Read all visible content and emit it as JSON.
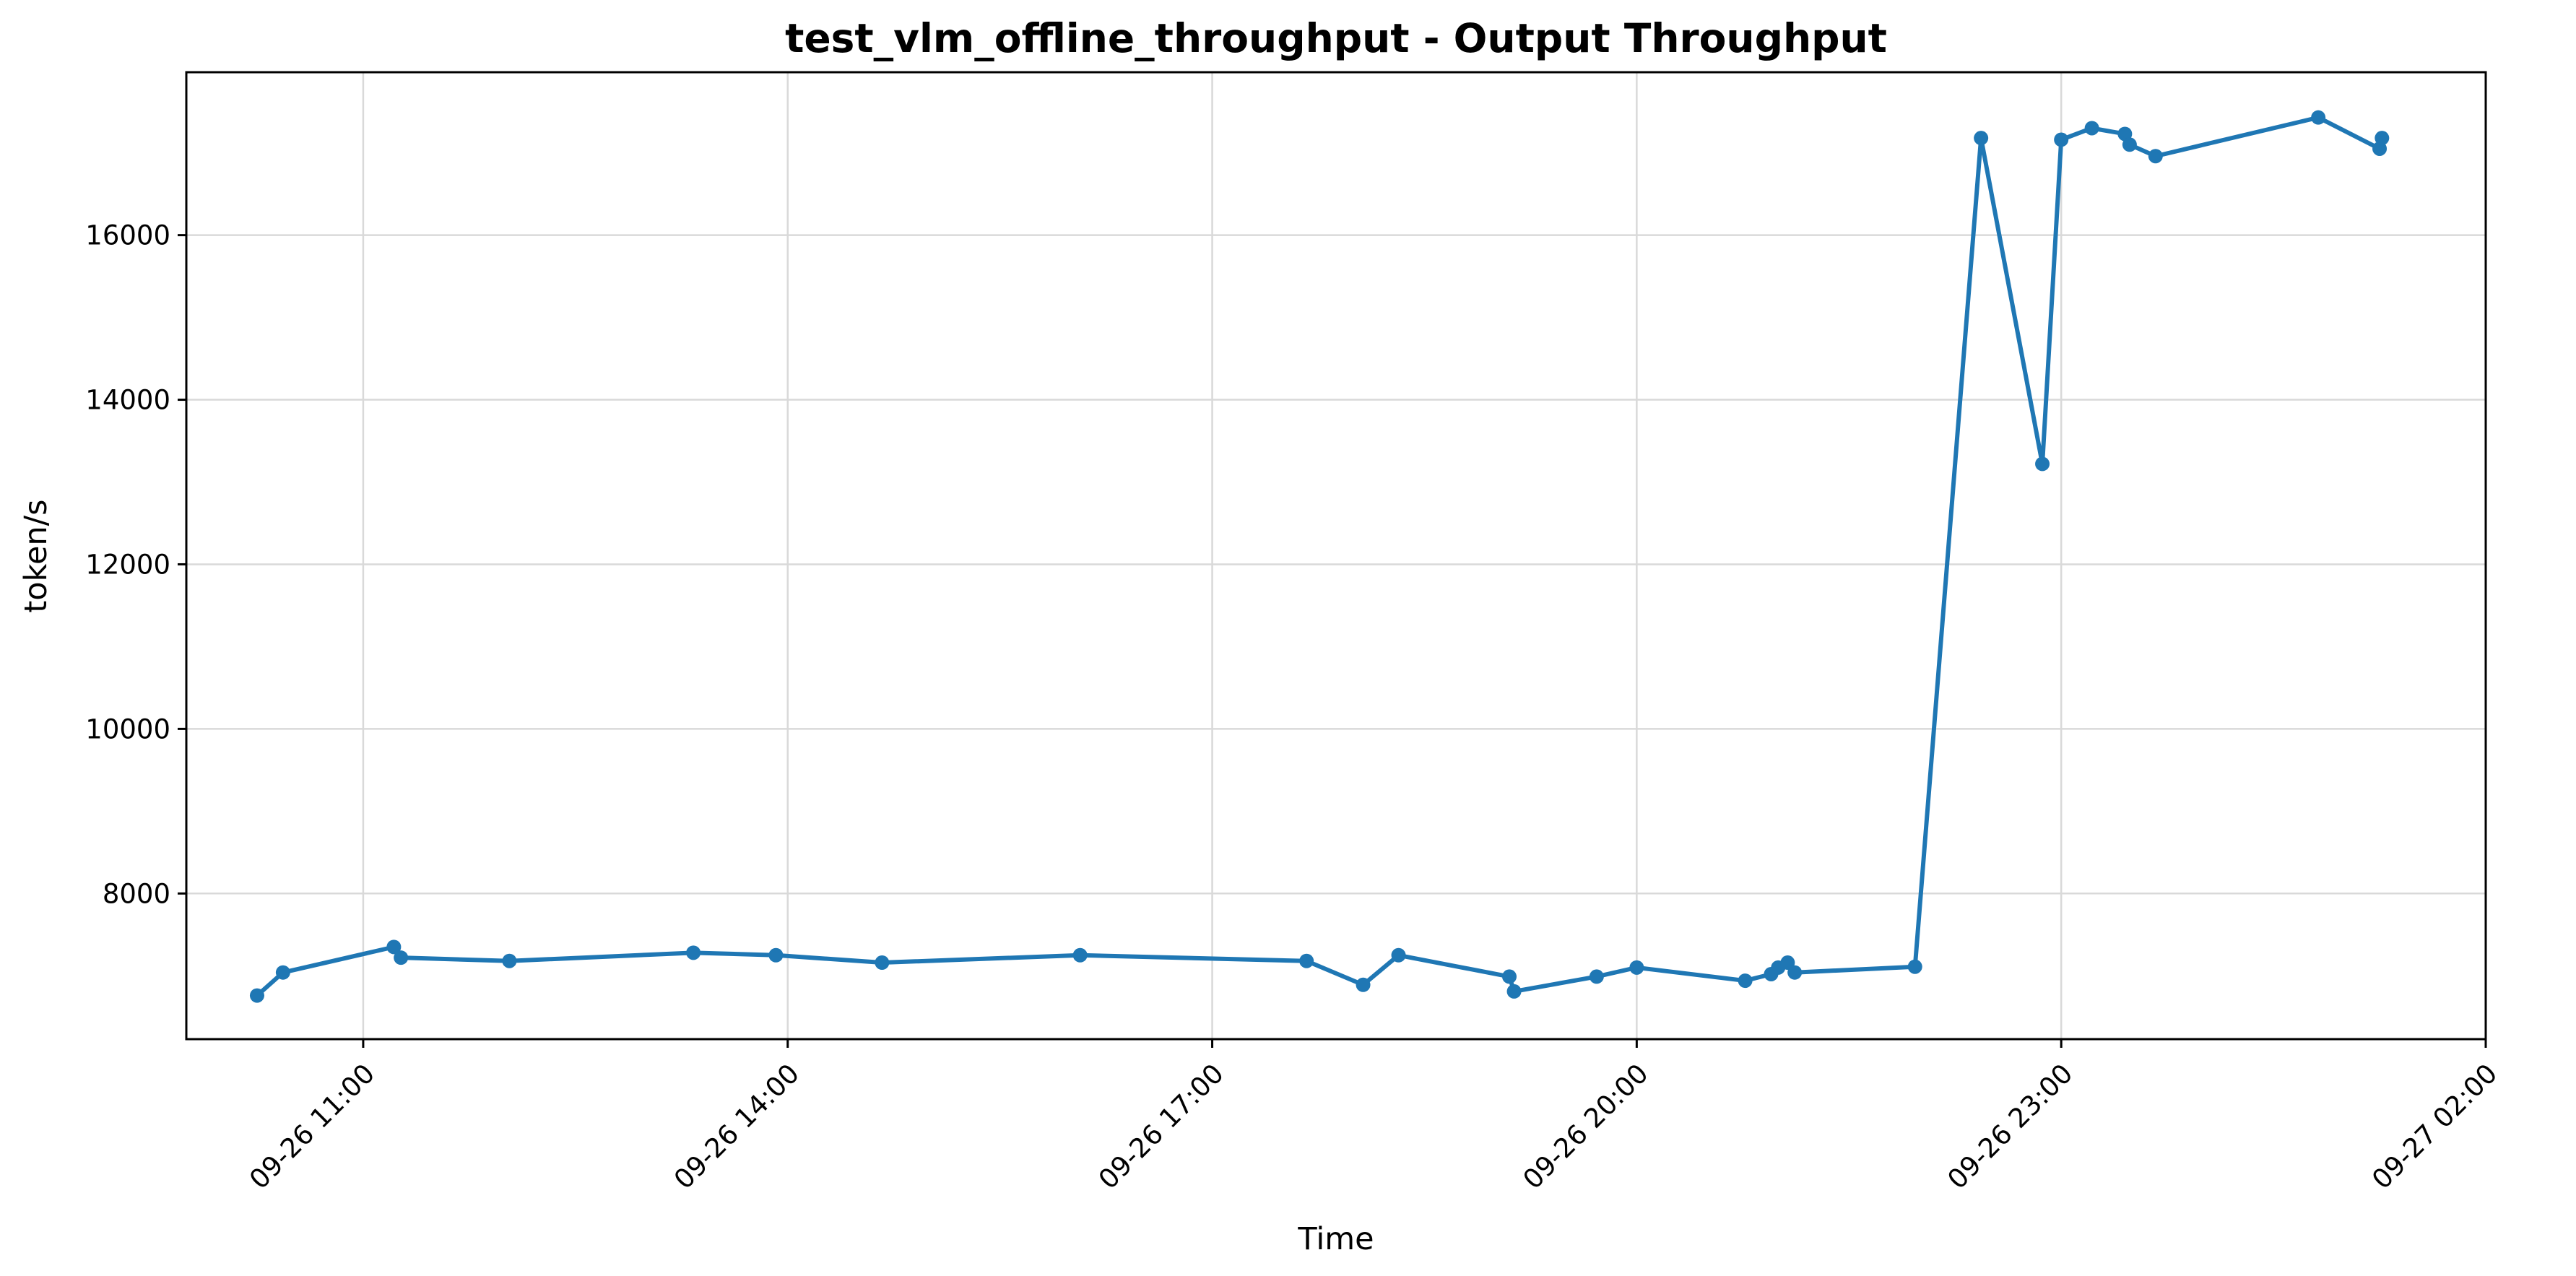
{
  "chart_data": {
    "type": "line",
    "title": "test_vlm_offline_throughput - Output Throughput",
    "xlabel": "Time",
    "ylabel": "token/s",
    "grid": true,
    "legend": "none",
    "line_color": "#1f77b4",
    "x_ticks": [
      "09-26 11:00",
      "09-26 14:00",
      "09-26 17:00",
      "09-26 20:00",
      "09-26 23:00",
      "09-27 02:00"
    ],
    "y_ticks": [
      8000,
      10000,
      12000,
      14000,
      16000
    ],
    "xlim": [
      "2025-09-26T09:45",
      "2025-09-27T02:00"
    ],
    "ylim": [
      6230,
      17980
    ],
    "series": [
      {
        "x": [
          "2025-09-26T10:15",
          "2025-09-26T10:26",
          "2025-09-26T11:13",
          "2025-09-26T11:16",
          "2025-09-26T12:02",
          "2025-09-26T13:20",
          "2025-09-26T13:55",
          "2025-09-26T14:40",
          "2025-09-26T16:04",
          "2025-09-26T17:40",
          "2025-09-26T18:04",
          "2025-09-26T18:19",
          "2025-09-26T19:06",
          "2025-09-26T19:08",
          "2025-09-26T19:43",
          "2025-09-26T20:00",
          "2025-09-26T20:46",
          "2025-09-26T20:57",
          "2025-09-26T21:00",
          "2025-09-26T21:04",
          "2025-09-26T21:07",
          "2025-09-26T21:58",
          "2025-09-26T22:26",
          "2025-09-26T22:52",
          "2025-09-26T23:00",
          "2025-09-26T23:13",
          "2025-09-26T23:27",
          "2025-09-26T23:29",
          "2025-09-26T23:40",
          "2025-09-27T00:49",
          "2025-09-27T01:15",
          "2025-09-27T01:16"
        ],
        "y": [
          6760,
          7040,
          7350,
          7220,
          7180,
          7280,
          7250,
          7160,
          7250,
          7180,
          6890,
          7250,
          6990,
          6810,
          6990,
          7100,
          6940,
          7020,
          7100,
          7160,
          7040,
          7110,
          17180,
          13220,
          17160,
          17300,
          17230,
          17100,
          16960,
          17430,
          17050,
          17180
        ]
      }
    ]
  }
}
